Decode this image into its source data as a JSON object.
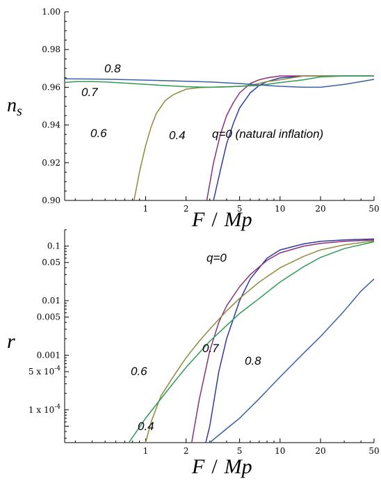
{
  "chart_data": [
    {
      "type": "line",
      "x_scale": "log",
      "xlim": [
        0.25,
        50
      ],
      "ylim": [
        0.9,
        1.0
      ],
      "x_ticks": [
        1,
        2,
        5,
        10,
        20,
        50
      ],
      "y_ticks": [
        0.9,
        0.92,
        0.94,
        0.96,
        0.98,
        1.0
      ],
      "y_tick_labels": [
        "0.90",
        "0.92",
        "0.94",
        "0.96",
        "0.98",
        "1.00"
      ],
      "xlabel_main": "F",
      "xlabel_sep": "/",
      "xlabel_sub": "Mp",
      "ylabel_main": "n",
      "ylabel_sub": "s",
      "series": [
        {
          "name": "q=0 (natural inflation)",
          "color": "#2e3a9c",
          "x": [
            3.2,
            3.6,
            4.0,
            4.5,
            5.0,
            6.0,
            7.0,
            8.0,
            10.0,
            15.0,
            20.0,
            30.0,
            50.0
          ],
          "y": [
            0.9,
            0.916,
            0.93,
            0.941,
            0.949,
            0.957,
            0.961,
            0.963,
            0.965,
            0.966,
            0.966,
            0.966,
            0.966
          ]
        },
        {
          "name": "0.4",
          "color": "#8b2e7a",
          "x": [
            2.85,
            3.2,
            3.6,
            4.0,
            4.5,
            5.0,
            6.0,
            7.0,
            8.0,
            10.0,
            15.0,
            20.0,
            30.0,
            50.0
          ],
          "y": [
            0.9,
            0.92,
            0.935,
            0.945,
            0.952,
            0.957,
            0.962,
            0.964,
            0.965,
            0.966,
            0.966,
            0.966,
            0.966,
            0.966
          ]
        },
        {
          "name": "0.6",
          "color": "#8e8a3c",
          "x": [
            0.82,
            0.9,
            1.0,
            1.1,
            1.2,
            1.4,
            1.6,
            2.0,
            2.5,
            3.0,
            4.0,
            5.0,
            6.0,
            8.0,
            10.0,
            15.0,
            20.0,
            30.0,
            50.0
          ],
          "y": [
            0.9,
            0.915,
            0.929,
            0.939,
            0.946,
            0.953,
            0.956,
            0.959,
            0.9598,
            0.96,
            0.9602,
            0.9605,
            0.961,
            0.963,
            0.964,
            0.966,
            0.966,
            0.966,
            0.966
          ]
        },
        {
          "name": "0.7",
          "color": "#2d9a55",
          "x": [
            0.25,
            0.3,
            0.4,
            0.5,
            0.7,
            1.0,
            1.5,
            2.0,
            3.0,
            5.0,
            7.0,
            10.0,
            15.0,
            20.0,
            30.0,
            50.0
          ],
          "y": [
            0.9625,
            0.963,
            0.963,
            0.9628,
            0.9622,
            0.9615,
            0.9608,
            0.9603,
            0.96,
            0.9605,
            0.961,
            0.9625,
            0.964,
            0.9655,
            0.966,
            0.966
          ]
        },
        {
          "name": "0.8",
          "color": "#3a5fa3",
          "x": [
            0.25,
            0.5,
            1.0,
            2.0,
            3.0,
            5.0,
            7.0,
            10.0,
            15.0,
            20.0,
            30.0,
            40.0,
            50.0
          ],
          "y": [
            0.9645,
            0.9643,
            0.9638,
            0.9632,
            0.9628,
            0.962,
            0.9612,
            0.9605,
            0.96,
            0.96,
            0.9615,
            0.963,
            0.9642
          ]
        }
      ],
      "annotations": [
        "0.8",
        "0.7",
        "0.6",
        "0.4",
        "q=0 (natural inflation)"
      ]
    },
    {
      "type": "line",
      "x_scale": "log",
      "y_scale": "log",
      "xlim": [
        0.25,
        50
      ],
      "ylim": [
        2.5e-05,
        0.2
      ],
      "x_ticks": [
        1,
        2,
        5,
        10,
        20,
        50
      ],
      "y_ticks": [
        0.1,
        0.05,
        0.01,
        0.005,
        0.001,
        0.0005,
        0.0001
      ],
      "y_tick_labels": [
        "0.1",
        "0.05",
        "0.01",
        "0.005",
        "0.001",
        "5 x 10",
        "1 x 10"
      ],
      "y_tick_exponents": [
        "",
        "",
        "",
        "",
        "",
        "-4",
        "-4"
      ],
      "xlabel_main": "F",
      "xlabel_sep": "/",
      "xlabel_sub": "Mp",
      "ylabel": "r",
      "series": [
        {
          "name": "q=0",
          "color": "#2e3a9c",
          "x": [
            2.8,
            3.0,
            3.5,
            4.0,
            5.0,
            6.0,
            8.0,
            10.0,
            15.0,
            20.0,
            30.0,
            50.0
          ],
          "y": [
            2.5e-05,
            5e-05,
            0.0005,
            0.002,
            0.01,
            0.025,
            0.06,
            0.085,
            0.11,
            0.122,
            0.13,
            0.135
          ]
        },
        {
          "name": "0.4",
          "color": "#8b2e7a",
          "x": [
            2.2,
            2.5,
            3.0,
            3.5,
            4.0,
            5.0,
            6.0,
            8.0,
            10.0,
            15.0,
            20.0,
            30.0,
            50.0
          ],
          "y": [
            2.5e-05,
            0.00015,
            0.0012,
            0.004,
            0.008,
            0.018,
            0.03,
            0.055,
            0.075,
            0.1,
            0.112,
            0.122,
            0.13
          ]
        },
        {
          "name": "0.6",
          "color": "#8e8a3c",
          "x": [
            1.0,
            1.1,
            1.3,
            1.6,
            2.0,
            2.5,
            3.0,
            4.0,
            5.0,
            7.0,
            10.0,
            15.0,
            20.0,
            30.0,
            50.0
          ],
          "y": [
            2.5e-05,
            6e-05,
            0.00018,
            0.0004,
            0.0009,
            0.0018,
            0.003,
            0.0065,
            0.011,
            0.022,
            0.04,
            0.065,
            0.085,
            0.105,
            0.125
          ]
        },
        {
          "name": "0.7",
          "color": "#2d9a55",
          "x": [
            0.75,
            1.0,
            1.5,
            2.0,
            3.0,
            4.0,
            5.0,
            7.0,
            10.0,
            15.0,
            20.0,
            30.0,
            50.0
          ],
          "y": [
            2.5e-05,
            7e-05,
            0.00025,
            0.0006,
            0.0018,
            0.0035,
            0.0058,
            0.011,
            0.022,
            0.042,
            0.062,
            0.09,
            0.12
          ]
        },
        {
          "name": "0.8",
          "color": "#3a5fa3",
          "x": [
            3.0,
            4.0,
            5.0,
            7.0,
            10.0,
            15.0,
            20.0,
            30.0,
            40.0,
            50.0
          ],
          "y": [
            2.5e-05,
            4.5e-05,
            7e-05,
            0.00016,
            0.0004,
            0.0011,
            0.0022,
            0.0065,
            0.015,
            0.025
          ]
        }
      ],
      "annotations": [
        "q=0",
        "0.7",
        "0.6",
        "0.8",
        "0.4"
      ]
    }
  ]
}
